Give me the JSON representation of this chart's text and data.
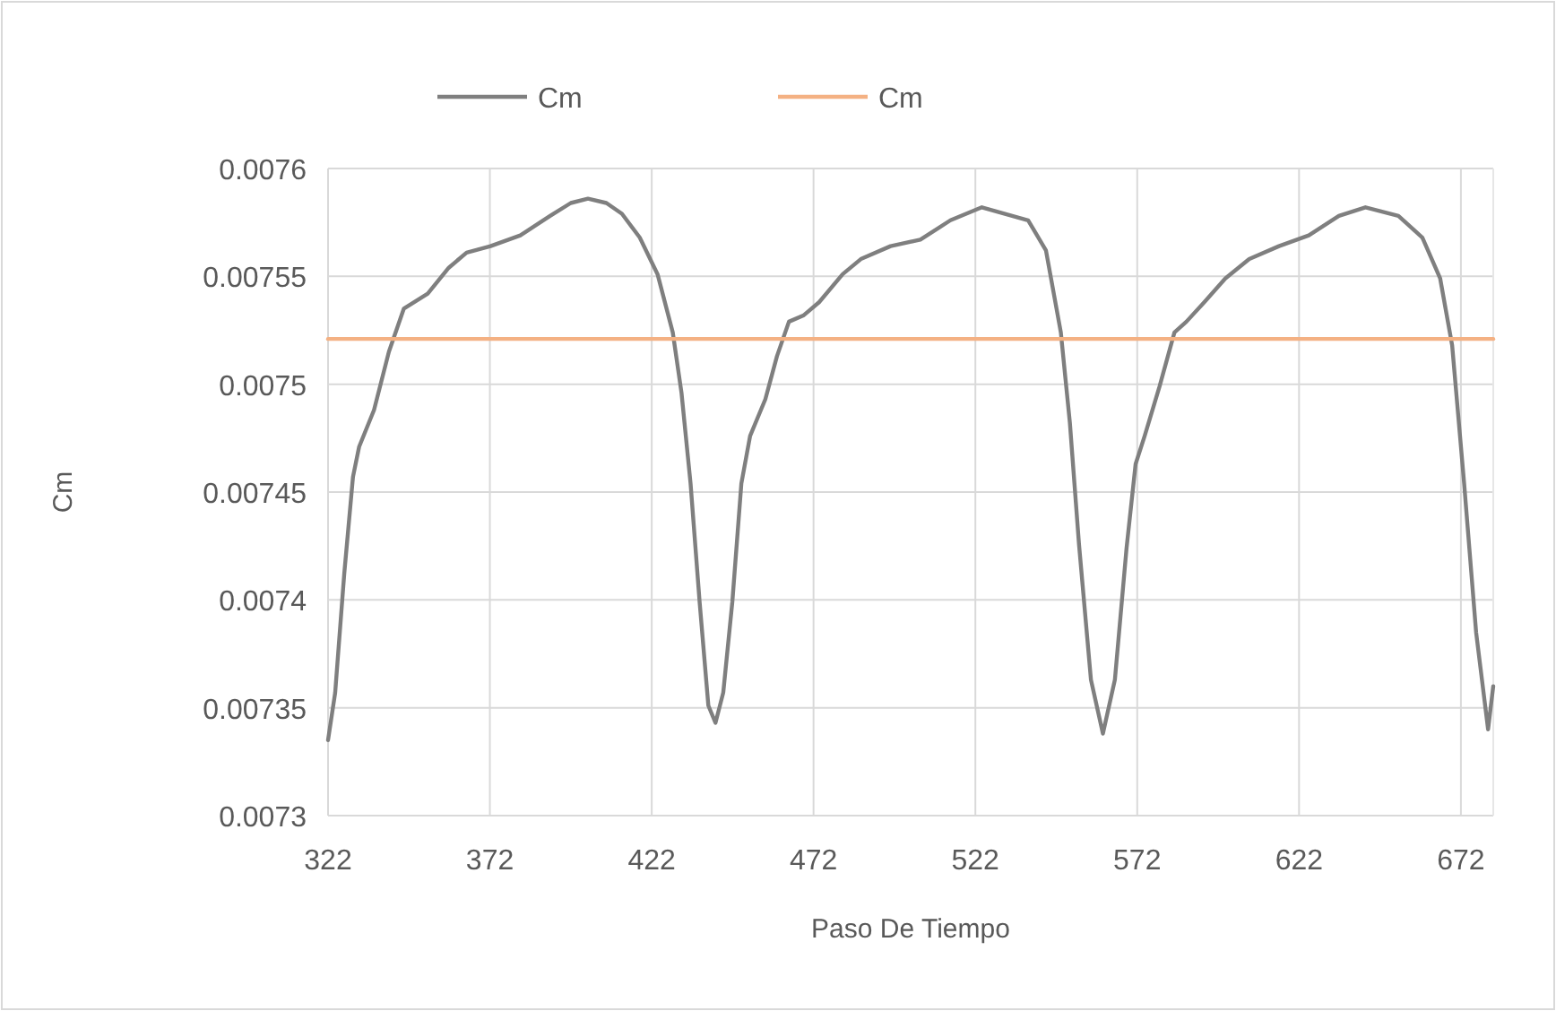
{
  "chart_data": {
    "type": "line",
    "xlabel": "Paso De Tiempo",
    "ylabel": "Cm",
    "xlim": [
      322,
      682
    ],
    "xticks": [
      322,
      372,
      422,
      472,
      522,
      572,
      622,
      672
    ],
    "ylim": [
      0.0073,
      0.0076
    ],
    "yticks": [
      0.0073,
      0.00735,
      0.0074,
      0.00745,
      0.0075,
      0.00755,
      0.0076
    ],
    "grid": true,
    "legend": "top",
    "marker": "none",
    "line_style": "solid",
    "series": [
      {
        "name": "Cm",
        "color": "#7f7f7f",
        "x": [
          322,
          324.2,
          327,
          329.7,
          331.6,
          336.2,
          340.8,
          345.4,
          352.8,
          359.3,
          364.8,
          372.2,
          381.4,
          390.6,
          397,
          402.3,
          408,
          412.8,
          418.3,
          423.8,
          428.5,
          431.2,
          434,
          436.8,
          439.5,
          441.7,
          444.1,
          446.9,
          449.7,
          452.4,
          457.1,
          460.7,
          464.4,
          469,
          473.7,
          481,
          486.6,
          495.8,
          505,
          514.3,
          524,
          538.3,
          543.8,
          548.4,
          551.2,
          554,
          557.7,
          561.4,
          565.1,
          568.7,
          571.5,
          574.3,
          578.9,
          583.5,
          587.2,
          592.7,
          599.2,
          606.6,
          615.8,
          625,
          634.3,
          642.5,
          652.7,
          660.1,
          665.6,
          669.3,
          673,
          676.7,
          680.4,
          682
        ],
        "values": [
          0.007335,
          0.007357,
          0.007412,
          0.007457,
          0.007471,
          0.007488,
          0.007515,
          0.007535,
          0.007542,
          0.007554,
          0.007561,
          0.007564,
          0.007569,
          0.007578,
          0.007584,
          0.007586,
          0.007584,
          0.007579,
          0.007568,
          0.007551,
          0.007524,
          0.007496,
          0.007454,
          0.007399,
          0.007351,
          0.007343,
          0.007357,
          0.007399,
          0.007454,
          0.007476,
          0.007493,
          0.007513,
          0.007529,
          0.007532,
          0.007538,
          0.007551,
          0.007558,
          0.007564,
          0.007567,
          0.007576,
          0.007582,
          0.007576,
          0.007562,
          0.007524,
          0.007482,
          0.007426,
          0.007363,
          0.007338,
          0.007363,
          0.007424,
          0.007463,
          0.007476,
          0.007499,
          0.007524,
          0.007529,
          0.007538,
          0.007549,
          0.007558,
          0.007564,
          0.007569,
          0.007578,
          0.007582,
          0.007578,
          0.007568,
          0.007549,
          0.007518,
          0.007454,
          0.007385,
          0.00734,
          0.00736
        ]
      },
      {
        "name": "Cm",
        "color": "#f4b183",
        "x": [
          322,
          682
        ],
        "values": [
          0.007521,
          0.007521
        ]
      }
    ]
  }
}
